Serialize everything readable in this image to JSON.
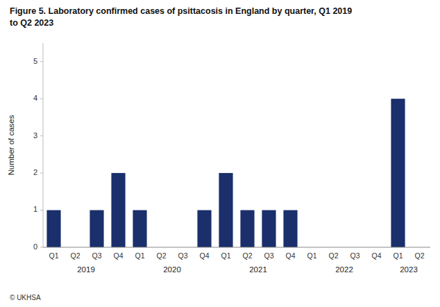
{
  "chart_data": {
    "type": "bar",
    "title": [
      "Figure 5. Laboratory confirmed cases of psittacosis in England by quarter, Q1 2019",
      "to Q2 2023"
    ],
    "y_label": "Number of cases",
    "source": "© UKHSA",
    "categories": [
      "Q1",
      "Q2",
      "Q3",
      "Q4",
      "Q1",
      "Q2",
      "Q3",
      "Q4",
      "Q1",
      "Q2",
      "Q3",
      "Q4",
      "Q1",
      "Q2",
      "Q3",
      "Q4",
      "Q1",
      "Q2"
    ],
    "x_groups": [
      "2019",
      "2020",
      "2021",
      "2022",
      "2023"
    ],
    "values": [
      1,
      0,
      1,
      2,
      1,
      0,
      0,
      1,
      2,
      1,
      1,
      1,
      0,
      0,
      0,
      0,
      4,
      0
    ],
    "color": "#1a2f6b",
    "ylim": [
      0,
      5.5
    ],
    "yticks": [
      0,
      1,
      2,
      3,
      4,
      5
    ],
    "grid": false
  }
}
